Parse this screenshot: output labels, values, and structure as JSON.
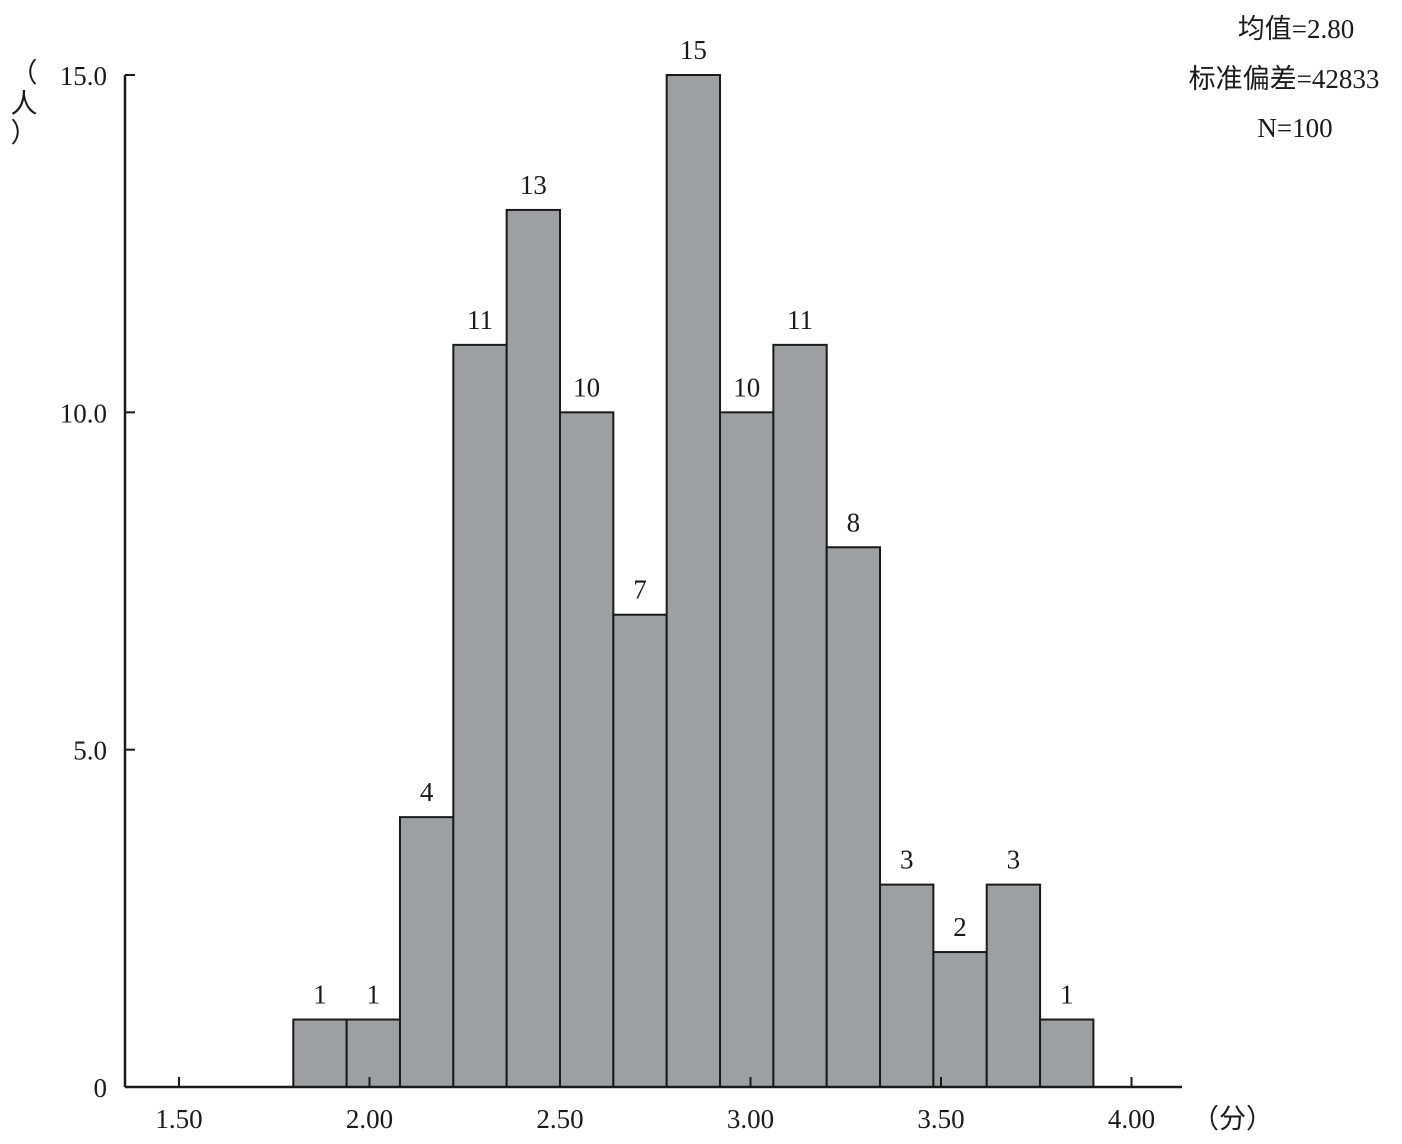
{
  "chart_data": {
    "type": "bar",
    "subtype": "histogram",
    "bins": [
      {
        "start": 1.8,
        "end": 1.94,
        "count": 1
      },
      {
        "start": 1.94,
        "end": 2.08,
        "count": 1
      },
      {
        "start": 2.08,
        "end": 2.22,
        "count": 4
      },
      {
        "start": 2.22,
        "end": 2.36,
        "count": 11
      },
      {
        "start": 2.36,
        "end": 2.5,
        "count": 13
      },
      {
        "start": 2.5,
        "end": 2.64,
        "count": 10
      },
      {
        "start": 2.64,
        "end": 2.78,
        "count": 7
      },
      {
        "start": 2.78,
        "end": 2.92,
        "count": 15
      },
      {
        "start": 2.92,
        "end": 3.06,
        "count": 10
      },
      {
        "start": 3.06,
        "end": 3.2,
        "count": 11
      },
      {
        "start": 3.2,
        "end": 3.34,
        "count": 8
      },
      {
        "start": 3.34,
        "end": 3.48,
        "count": 3
      },
      {
        "start": 3.48,
        "end": 3.62,
        "count": 2
      },
      {
        "start": 3.62,
        "end": 3.76,
        "count": 3
      },
      {
        "start": 3.76,
        "end": 3.9,
        "count": 1
      }
    ],
    "bar_labels": [
      "1",
      "1",
      "4",
      "11",
      "13",
      "10",
      "7",
      "15",
      "10",
      "11",
      "8",
      "3",
      "2",
      "3",
      "1"
    ],
    "xlim": [
      1.36,
      4.14
    ],
    "ylim": [
      0,
      15
    ],
    "xticks": [
      1.5,
      2.0,
      2.5,
      3.0,
      3.5,
      4.0
    ],
    "xtick_labels": [
      "1.50",
      "2.00",
      "2.50",
      "3.00",
      "3.50",
      "4.00"
    ],
    "yticks": [
      0,
      5,
      10,
      15
    ],
    "ytick_labels": [
      "0",
      "5.0",
      "10.0",
      "15.0"
    ],
    "xlabel": "（分）",
    "ylabel": "（人）",
    "ylabel_parts": [
      "（",
      "人",
      "）"
    ],
    "stats": {
      "mean": "均值=2.80",
      "std": "标准偏差=42833",
      "n": "N=100"
    },
    "grid": false,
    "bar_color": "#9d9fa2",
    "edge_color": "#1a1a1a"
  }
}
